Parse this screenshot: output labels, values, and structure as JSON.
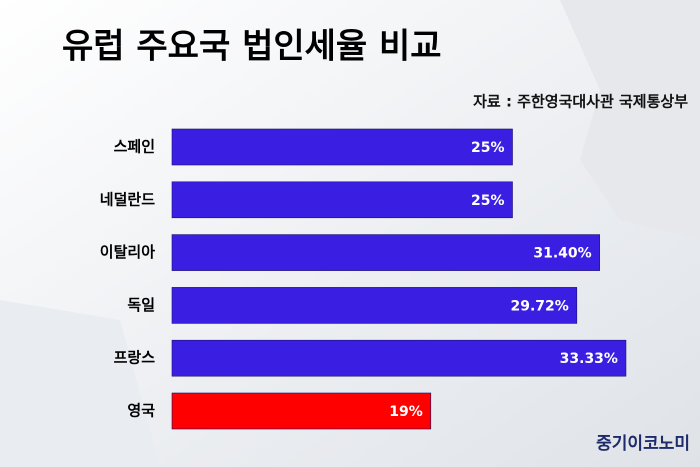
{
  "chart_data": {
    "type": "bar",
    "orientation": "horizontal",
    "title": "유럽 주요국 법인세율 비교",
    "subtitle": "자료 : 주한영국대사관 국제통상부",
    "brand": "중기이코노미",
    "categories": [
      "스페인",
      "네덜란드",
      "이탈리아",
      "독일",
      "프랑스",
      "영국"
    ],
    "values": [
      25,
      25,
      31.4,
      29.72,
      33.33,
      19
    ],
    "value_labels": [
      "25%",
      "25%",
      "31.40%",
      "29.72%",
      "33.33%",
      "19%"
    ],
    "colors": [
      "#3a1fe2",
      "#3a1fe2",
      "#3a1fe2",
      "#3a1fe2",
      "#3a1fe2",
      "#ff0000"
    ]
  }
}
